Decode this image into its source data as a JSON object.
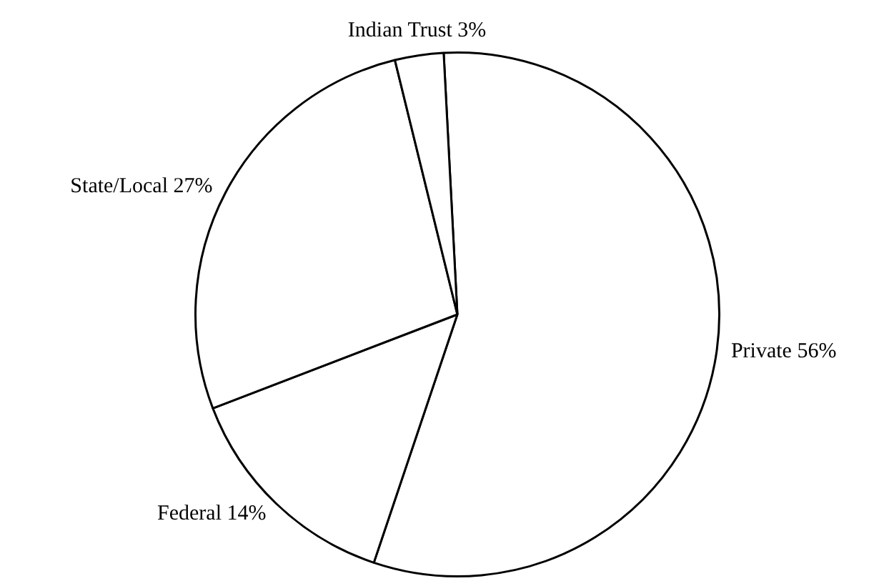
{
  "chart_data": {
    "type": "pie",
    "categories": [
      "Private",
      "Federal",
      "State/Local",
      "Indian Trust"
    ],
    "values": [
      56,
      14,
      27,
      3
    ],
    "value_labels": [
      "56%",
      "14%",
      "27%",
      "3%"
    ],
    "colors": [
      "#ffffff",
      "#ffffff",
      "#ffffff",
      "#ffffff"
    ],
    "legend": false
  }
}
